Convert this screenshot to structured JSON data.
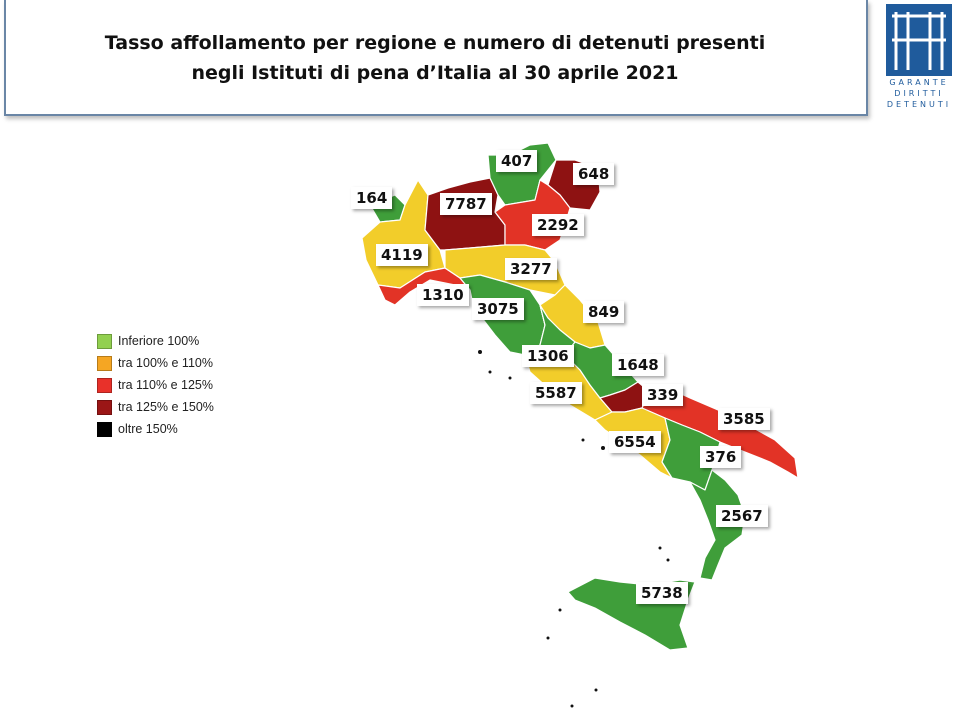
{
  "header": {
    "title_line1": "Tasso affollamento per regione e numero di detenuti presenti",
    "title_line2": "negli Istituti di pena d’Italia al 30 aprile 2021",
    "logo_lines": [
      "GARANTE",
      "DIRITTI",
      "DETENUTI"
    ],
    "logo_color": "#1f5b9c"
  },
  "legend": [
    {
      "label": "Inferiore 100%",
      "color": "#92d050"
    },
    {
      "label": "tra 100% e 110%",
      "color": "#f5a623"
    },
    {
      "label": "tra 110% e 125%",
      "color": "#e8312a"
    },
    {
      "label": "tra 125% e 150%",
      "color": "#9b1616"
    },
    {
      "label": "oltre 150%",
      "color": "#000000"
    }
  ],
  "map_colors": {
    "green": "#3f9e3a",
    "yellow": "#f2cd2a",
    "red": "#e23326",
    "darkred": "#8e1212"
  },
  "regions": [
    {
      "value": "164",
      "class": "green"
    },
    {
      "value": "7787",
      "class": "darkred"
    },
    {
      "value": "407",
      "class": "green"
    },
    {
      "value": "648",
      "class": "darkred"
    },
    {
      "value": "2292",
      "class": "red"
    },
    {
      "value": "4119",
      "class": "yellow"
    },
    {
      "value": "3277",
      "class": "yellow"
    },
    {
      "value": "1310",
      "class": "red"
    },
    {
      "value": "3075",
      "class": "green"
    },
    {
      "value": "849",
      "class": "yellow"
    },
    {
      "value": "1306",
      "class": "green"
    },
    {
      "value": "1648",
      "class": "green"
    },
    {
      "value": "5587",
      "class": "yellow"
    },
    {
      "value": "339",
      "class": "darkred"
    },
    {
      "value": "3585",
      "class": "red"
    },
    {
      "value": "6554",
      "class": "yellow"
    },
    {
      "value": "376",
      "class": "green"
    },
    {
      "value": "2567",
      "class": "green"
    },
    {
      "value": "5738",
      "class": "green"
    }
  ]
}
